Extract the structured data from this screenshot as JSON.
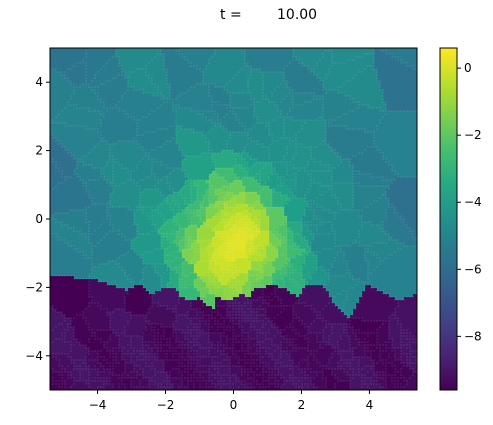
{
  "chart_data": {
    "type": "heatmap",
    "title_prefix": "t =",
    "title_value": "10.00",
    "xlabel": "",
    "ylabel": "",
    "xlim": [
      -5.4,
      5.4
    ],
    "ylim": [
      -5,
      5
    ],
    "x_ticks": [
      {
        "value": -4,
        "label": "−4"
      },
      {
        "value": -2,
        "label": "−2"
      },
      {
        "value": 0,
        "label": "0"
      },
      {
        "value": 2,
        "label": "2"
      },
      {
        "value": 4,
        "label": "4"
      }
    ],
    "y_ticks": [
      {
        "value": -4,
        "label": "−4"
      },
      {
        "value": -2,
        "label": "−2"
      },
      {
        "value": 0,
        "label": "0"
      },
      {
        "value": 2,
        "label": "2"
      },
      {
        "value": 4,
        "label": "4"
      }
    ],
    "colorbar": {
      "colormap": "viridis",
      "range": [
        -9.6,
        0.6
      ],
      "ticks": [
        {
          "value": 0,
          "label": "0"
        },
        {
          "value": -2,
          "label": "−2"
        },
        {
          "value": -4,
          "label": "−4"
        },
        {
          "value": -6,
          "label": "−6"
        },
        {
          "value": -8,
          "label": "−8"
        }
      ]
    },
    "field": {
      "description_free": true,
      "peak_center": [
        0,
        -0.8
      ],
      "peak_value": 0.5,
      "background_value": -5.0,
      "low_region_value": -9.3,
      "boundary_y": -2.2
    },
    "grid": false
  }
}
